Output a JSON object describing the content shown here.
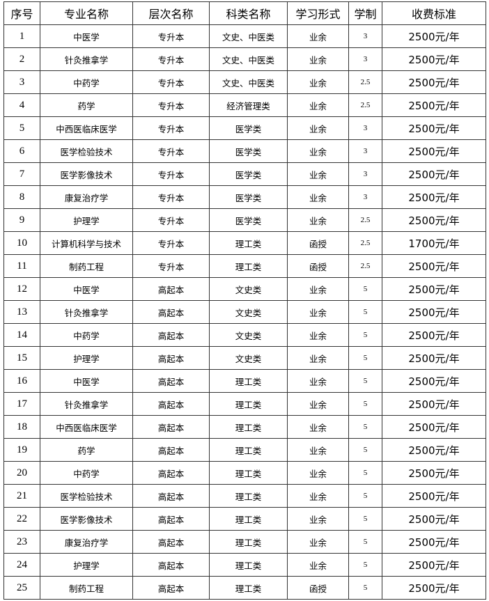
{
  "table": {
    "header": [
      "序号",
      "专业名称",
      "层次名称",
      "科类名称",
      "学习形式",
      "学制",
      "收费标准"
    ],
    "rows": [
      [
        "1",
        "中医学",
        "专升本",
        "文史、中医类",
        "业余",
        "3",
        "2500元/年"
      ],
      [
        "2",
        "针灸推拿学",
        "专升本",
        "文史、中医类",
        "业余",
        "3",
        "2500元/年"
      ],
      [
        "3",
        "中药学",
        "专升本",
        "文史、中医类",
        "业余",
        "2.5",
        "2500元/年"
      ],
      [
        "4",
        "药学",
        "专升本",
        "经济管理类",
        "业余",
        "2.5",
        "2500元/年"
      ],
      [
        "5",
        "中西医临床医学",
        "专升本",
        "医学类",
        "业余",
        "3",
        "2500元/年"
      ],
      [
        "6",
        "医学检验技术",
        "专升本",
        "医学类",
        "业余",
        "3",
        "2500元/年"
      ],
      [
        "7",
        "医学影像技术",
        "专升本",
        "医学类",
        "业余",
        "3",
        "2500元/年"
      ],
      [
        "8",
        "康复治疗学",
        "专升本",
        "医学类",
        "业余",
        "3",
        "2500元/年"
      ],
      [
        "9",
        "护理学",
        "专升本",
        "医学类",
        "业余",
        "2.5",
        "2500元/年"
      ],
      [
        "10",
        "计算机科学与技术",
        "专升本",
        "理工类",
        "函授",
        "2.5",
        "1700元/年"
      ],
      [
        "11",
        "制药工程",
        "专升本",
        "理工类",
        "函授",
        "2.5",
        "2500元/年"
      ],
      [
        "12",
        "中医学",
        "高起本",
        "文史类",
        "业余",
        "5",
        "2500元/年"
      ],
      [
        "13",
        "针灸推拿学",
        "高起本",
        "文史类",
        "业余",
        "5",
        "2500元/年"
      ],
      [
        "14",
        "中药学",
        "高起本",
        "文史类",
        "业余",
        "5",
        "2500元/年"
      ],
      [
        "15",
        "护理学",
        "高起本",
        "文史类",
        "业余",
        "5",
        "2500元/年"
      ],
      [
        "16",
        "中医学",
        "高起本",
        "理工类",
        "业余",
        "5",
        "2500元/年"
      ],
      [
        "17",
        "针灸推拿学",
        "高起本",
        "理工类",
        "业余",
        "5",
        "2500元/年"
      ],
      [
        "18",
        "中西医临床医学",
        "高起本",
        "理工类",
        "业余",
        "5",
        "2500元/年"
      ],
      [
        "19",
        "药学",
        "高起本",
        "理工类",
        "业余",
        "5",
        "2500元/年"
      ],
      [
        "20",
        "中药学",
        "高起本",
        "理工类",
        "业余",
        "5",
        "2500元/年"
      ],
      [
        "21",
        "医学检验技术",
        "高起本",
        "理工类",
        "业余",
        "5",
        "2500元/年"
      ],
      [
        "22",
        "医学影像技术",
        "高起本",
        "理工类",
        "业余",
        "5",
        "2500元/年"
      ],
      [
        "23",
        "康复治疗学",
        "高起本",
        "理工类",
        "业余",
        "5",
        "2500元/年"
      ],
      [
        "24",
        "护理学",
        "高起本",
        "理工类",
        "业余",
        "5",
        "2500元/年"
      ],
      [
        "25",
        "制药工程",
        "高起本",
        "理工类",
        "函授",
        "5",
        "2500元/年"
      ]
    ]
  }
}
